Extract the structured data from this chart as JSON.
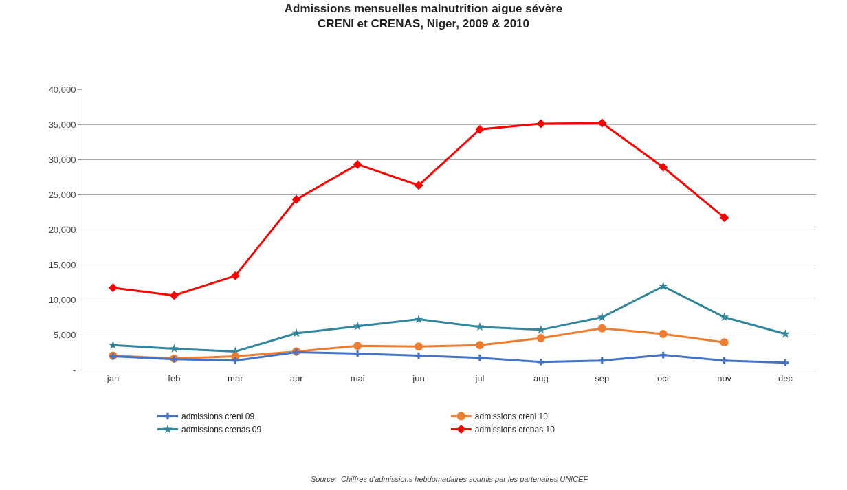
{
  "chart_data": {
    "type": "line",
    "title": "Admissions mensuelles malnutrition aigue sévère\nCRENI et CRENAS, Niger, 2009 & 2010",
    "categories": [
      "jan",
      "feb",
      "mar",
      "apr",
      "mai",
      "jun",
      "jul",
      "aug",
      "sep",
      "oct",
      "nov",
      "dec"
    ],
    "series": [
      {
        "name": "admissions creni 09",
        "color": "#4472c4",
        "marker": "cross",
        "values": [
          1900,
          1500,
          1300,
          2500,
          2300,
          2000,
          1700,
          1100,
          1300,
          2100,
          1300,
          1000
        ]
      },
      {
        "name": "admissions creni 10",
        "color": "#ed7d31",
        "marker": "circle",
        "values": [
          2000,
          1600,
          1900,
          2600,
          3400,
          3300,
          3500,
          4500,
          5900,
          5100,
          3900,
          null
        ]
      },
      {
        "name": "admissions crenas 09",
        "color": "#31859c",
        "marker": "star",
        "values": [
          3500,
          3000,
          2600,
          5200,
          6200,
          7200,
          6100,
          5700,
          7500,
          11900,
          7500,
          5100
        ]
      },
      {
        "name": "admissions crenas 10",
        "color": "#ff0000",
        "marker": "diamond",
        "values": [
          11700,
          10600,
          13400,
          24300,
          29300,
          26300,
          34300,
          35100,
          35200,
          28900,
          21700,
          null
        ]
      }
    ],
    "ylim": [
      0,
      40000
    ],
    "yticks": [
      {
        "value": 0,
        "label": "-"
      },
      {
        "value": 5000,
        "label": "5,000"
      },
      {
        "value": 10000,
        "label": "10,000"
      },
      {
        "value": 15000,
        "label": "15,000"
      },
      {
        "value": 20000,
        "label": "20,000"
      },
      {
        "value": 25000,
        "label": "25,000"
      },
      {
        "value": 30000,
        "label": "30,000"
      },
      {
        "value": 35000,
        "label": "35,000"
      },
      {
        "value": 40000,
        "label": "40,000"
      }
    ],
    "grid": "y",
    "legend": "bottom",
    "line_style": "solid",
    "annotations": [
      "Source:  Chiffres d'admissions hebdomadaires soumis par les partenaires UNICEF"
    ]
  }
}
